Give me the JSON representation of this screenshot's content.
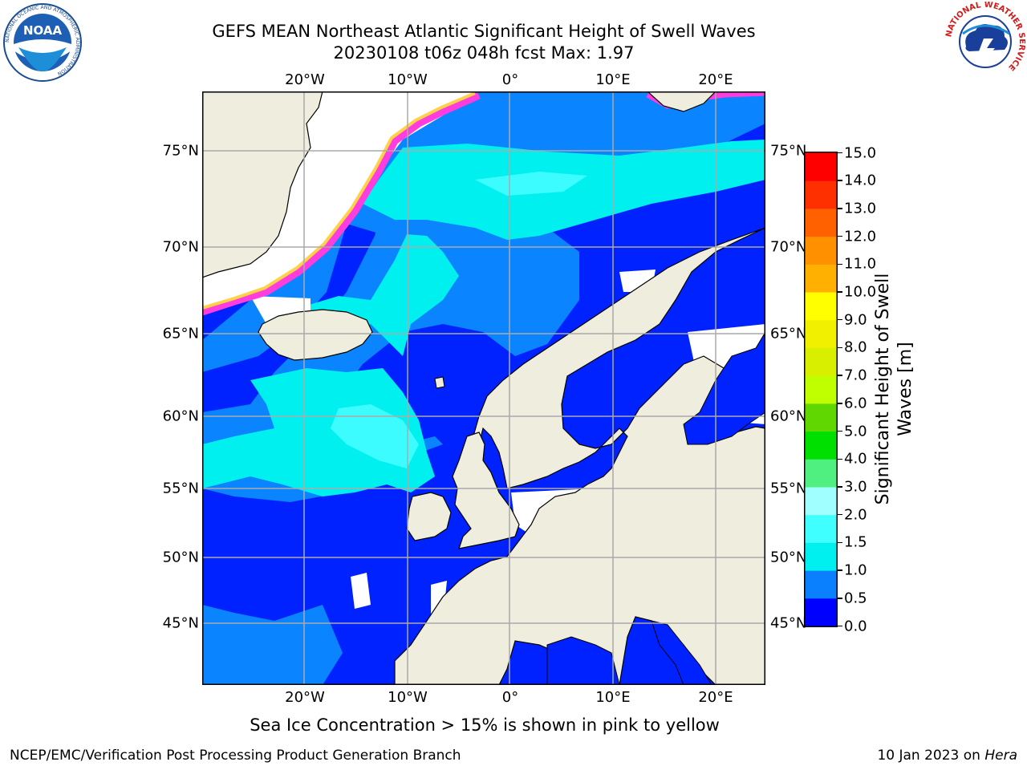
{
  "title": {
    "line1": "GEFS MEAN Northeast Atlantic Significant Height of Swell Waves",
    "line2": "20230108 t06z 048h fcst   Max: 1.97"
  },
  "map": {
    "lon_labels": [
      "20°W",
      "10°W",
      "0°",
      "10°E",
      "20°E"
    ],
    "lat_labels": [
      "75°N",
      "70°N",
      "65°N",
      "60°N",
      "55°N",
      "50°N",
      "45°N"
    ],
    "colors": {
      "land": "#efeddd",
      "ocean_0_05": "#0022ff",
      "ocean_05_10": "#0a84ff",
      "ocean_10_15": "#00f0f0",
      "ocean_15_20": "#3cfcff",
      "sea_ice_pink": "#ff3ddf",
      "sea_ice_yellow": "#ffd24a",
      "grid": "#aaaaaa"
    }
  },
  "colorbar": {
    "title_line1": "Significant Height of Swell",
    "title_line2": "Waves [m]",
    "labels": [
      "15.0",
      "14.0",
      "13.0",
      "12.0",
      "11.0",
      "10.0",
      "9.0",
      "8.0",
      "7.0",
      "6.0",
      "5.0",
      "4.0",
      "3.0",
      "2.0",
      "1.5",
      "1.0",
      "0.5",
      "0.0"
    ],
    "bands": [
      {
        "from": 0.0,
        "to": 0.5,
        "color": "#0000ff"
      },
      {
        "from": 0.5,
        "to": 1.0,
        "color": "#0a80ff"
      },
      {
        "from": 1.0,
        "to": 1.5,
        "color": "#00f0f0"
      },
      {
        "from": 1.5,
        "to": 2.0,
        "color": "#40ffff"
      },
      {
        "from": 2.0,
        "to": 3.0,
        "color": "#a0ffff"
      },
      {
        "from": 3.0,
        "to": 4.0,
        "color": "#50f080"
      },
      {
        "from": 4.0,
        "to": 5.0,
        "color": "#00e000"
      },
      {
        "from": 5.0,
        "to": 6.0,
        "color": "#60d800"
      },
      {
        "from": 6.0,
        "to": 7.0,
        "color": "#c0ff00"
      },
      {
        "from": 7.0,
        "to": 8.0,
        "color": "#d8f000"
      },
      {
        "from": 8.0,
        "to": 9.0,
        "color": "#f0f000"
      },
      {
        "from": 9.0,
        "to": 10.0,
        "color": "#ffff00"
      },
      {
        "from": 10.0,
        "to": 11.0,
        "color": "#ffb000"
      },
      {
        "from": 11.0,
        "to": 12.0,
        "color": "#ff9000"
      },
      {
        "from": 12.0,
        "to": 13.0,
        "color": "#ff6000"
      },
      {
        "from": 13.0,
        "to": 14.0,
        "color": "#ff3000"
      },
      {
        "from": 14.0,
        "to": 15.0,
        "color": "#ff0000"
      }
    ]
  },
  "note": "Sea Ice Concentration > 15% is shown in pink to yellow",
  "footer": {
    "left": "NCEP/EMC/Verification Post Processing Product Generation Branch",
    "right_date": "10 Jan 2023 on ",
    "right_host": "Hera"
  },
  "logos": {
    "noaa": {
      "text": "NOAA",
      "ring": "NATIONAL OCEANIC AND ATMOSPHERIC ADMINISTRATION"
    },
    "nws": {
      "ring": "NATIONAL WEATHER SERVICE"
    }
  }
}
